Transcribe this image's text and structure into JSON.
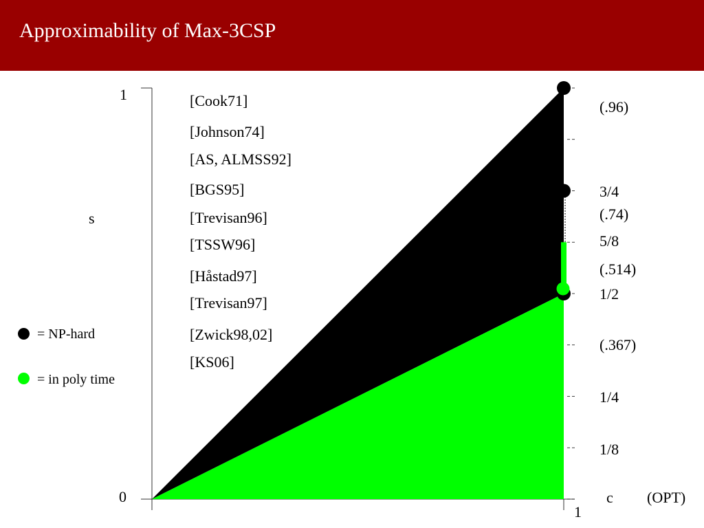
{
  "slide": {
    "title": "Approximability of Max-3CSP"
  },
  "colors": {
    "title_bar": "#990000",
    "title_text": "#ffffff",
    "np_hard": "#000000",
    "poly_time": "#00ff00"
  },
  "diagram": {
    "y_axis": {
      "label": "s",
      "tick_top": "1",
      "tick_bottom": "0"
    },
    "x_axis": {
      "label": "c",
      "label_suffix": "(OPT)",
      "tick_right": "1"
    },
    "references": [
      "[Cook71]",
      "[Johnson74]",
      "[AS, ALMSS92]",
      "[BGS95]",
      "[Trevisan96]",
      "[TSSW96]",
      "[Håstad97]",
      "[Trevisan97]",
      "[Zwick98,02]",
      "[KS06]"
    ],
    "right_labels": [
      {
        "text": "(.96)",
        "value": 0.96
      },
      {
        "text": "3/4",
        "value": 0.75
      },
      {
        "text": "(.74)",
        "value": 0.74
      },
      {
        "text": "5/8",
        "value": 0.625
      },
      {
        "text": "(.514)",
        "value": 0.514
      },
      {
        "text": "1/2",
        "value": 0.5
      },
      {
        "text": "(.367)",
        "value": 0.367
      },
      {
        "text": "1/4",
        "value": 0.25
      },
      {
        "text": "1/8",
        "value": 0.125
      }
    ],
    "dash_ticks": [
      1,
      0.875,
      0.75,
      0.625,
      0.5,
      0.375,
      0.25,
      0.125,
      0
    ],
    "np_hard_points": [
      1,
      0.75,
      0.5
    ],
    "poly_time_points": [
      0.5
    ],
    "poly_time_segment": [
      0.5,
      0.625
    ],
    "legend": {
      "np_hard": "= NP-hard",
      "poly_time": "= in poly time"
    }
  }
}
